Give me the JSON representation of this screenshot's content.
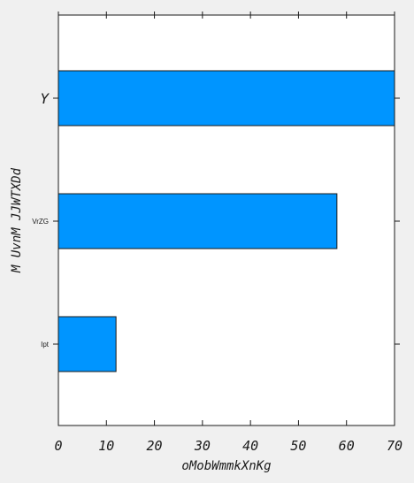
{
  "chart_data": {
    "type": "bar",
    "orientation": "horizontal",
    "categories": [
      "Y",
      "VrZG",
      "Ipt"
    ],
    "values": [
      70,
      58,
      12
    ],
    "xlabel": "oMobWmmkXnKg",
    "ylabel": "M UvnM JJWTXDd",
    "xlim": [
      0,
      70
    ],
    "xticks": [
      0,
      10,
      20,
      30,
      40,
      50,
      60,
      70
    ],
    "bar_color": "#0095ff",
    "background": "#ffffff",
    "grid": false,
    "legend": "none"
  }
}
